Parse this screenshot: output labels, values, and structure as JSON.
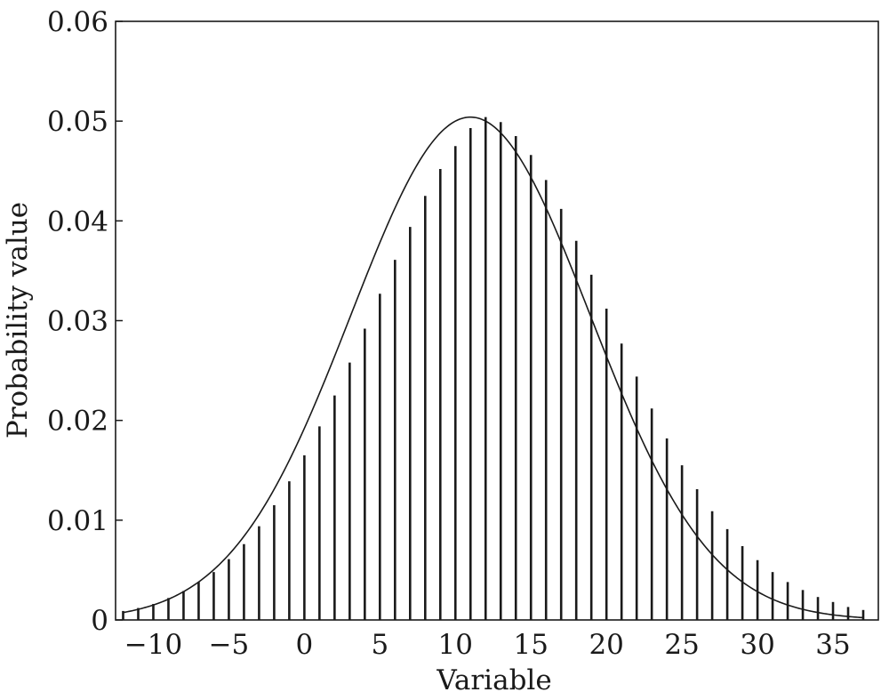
{
  "chart_data": {
    "type": "line",
    "title": "",
    "xlabel": "Variable",
    "ylabel": "Probability value",
    "xlim": [
      -12.5,
      38
    ],
    "ylim": [
      0,
      0.06
    ],
    "grid": false,
    "x_ticks": [
      -10,
      -5,
      0,
      5,
      10,
      15,
      20,
      25,
      30,
      35
    ],
    "x_tick_labels": [
      "−10",
      "−5",
      "0",
      "5",
      "10",
      "15",
      "20",
      "25",
      "30",
      "35"
    ],
    "y_ticks": [
      0,
      0.01,
      0.02,
      0.03,
      0.04,
      0.05,
      0.06
    ],
    "y_tick_labels": [
      "0",
      "0.01",
      "0.02",
      "0.03",
      "0.04",
      "0.05",
      "0.06"
    ],
    "series": [
      {
        "style": "probability stems",
        "x": [
          -12,
          -11,
          -10,
          -9,
          -8,
          -7,
          -6,
          -5,
          -4,
          -3,
          -2,
          -1,
          0,
          1,
          2,
          3,
          4,
          5,
          6,
          7,
          8,
          9,
          10,
          11,
          12,
          13,
          14,
          15,
          16,
          17,
          18,
          19,
          20,
          21,
          22,
          23,
          24,
          25,
          26,
          27,
          28,
          29,
          30,
          31,
          32,
          33,
          34,
          35,
          36,
          37
        ],
        "y": [
          0.0009,
          0.0012,
          0.0016,
          0.0022,
          0.0029,
          0.0038,
          0.0048,
          0.0061,
          0.0076,
          0.0094,
          0.0115,
          0.0139,
          0.0165,
          0.0194,
          0.0225,
          0.0258,
          0.0292,
          0.0327,
          0.0361,
          0.0394,
          0.0425,
          0.0452,
          0.0475,
          0.0493,
          0.0504,
          0.0499,
          0.0485,
          0.0466,
          0.0441,
          0.0412,
          0.038,
          0.0346,
          0.0312,
          0.0277,
          0.0244,
          0.0212,
          0.0182,
          0.0155,
          0.0131,
          0.0109,
          0.0091,
          0.0074,
          0.006,
          0.0048,
          0.0038,
          0.003,
          0.0023,
          0.0018,
          0.0013,
          0.001
        ]
      },
      {
        "style": "density curve",
        "mean": 11,
        "std": 7.92,
        "peak": 0.0504
      }
    ]
  }
}
